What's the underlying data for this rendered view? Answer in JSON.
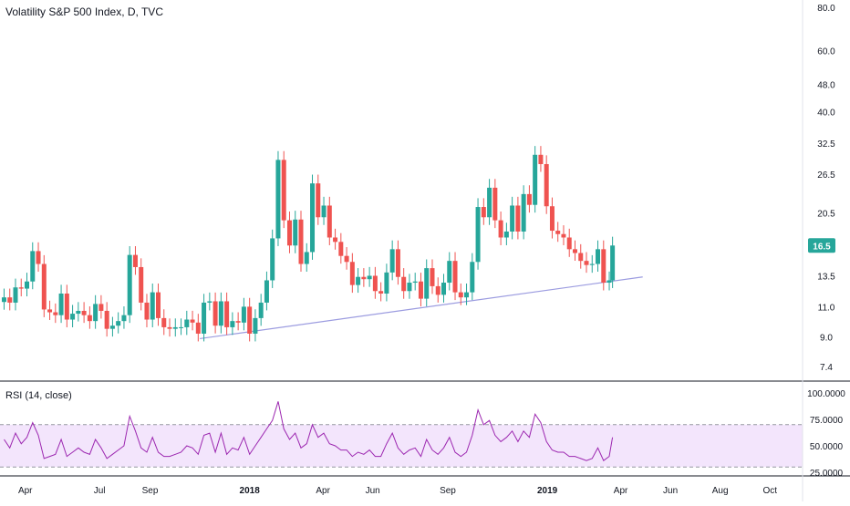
{
  "chart_data": [
    {
      "type": "candlestick",
      "title": "Volatility S&P 500 Index, D, TVC",
      "y_scale": "log",
      "y_ticks": [
        "80.0",
        "60.0",
        "48.0",
        "40.0",
        "32.5",
        "26.5",
        "20.5",
        "16.5",
        "13.5",
        "11.0",
        "9.0",
        "7.4"
      ],
      "y_tick_values": [
        80.0,
        60.0,
        48.0,
        40.0,
        32.5,
        26.5,
        20.5,
        16.5,
        13.5,
        11.0,
        9.0,
        7.4
      ],
      "last_price": "16.5",
      "x_ticks": [
        "Apr",
        "Jul",
        "Sep",
        "2018",
        "Apr",
        "Jun",
        "Sep",
        "2019",
        "Apr",
        "Jun",
        "Aug",
        "Oct"
      ],
      "x_tick_dates": [
        "2017-04-01",
        "2017-07-01",
        "2017-09-01",
        "2018-01-01",
        "2018-04-01",
        "2018-06-01",
        "2018-09-01",
        "2019-01-01",
        "2019-04-01",
        "2019-06-01",
        "2019-08-01",
        "2019-10-01"
      ],
      "closes": [
        {
          "date": "2017-03-06",
          "value": 11.7
        },
        {
          "date": "2017-03-13",
          "value": 11.3
        },
        {
          "date": "2017-03-20",
          "value": 12.5
        },
        {
          "date": "2017-03-27",
          "value": 12.4
        },
        {
          "date": "2017-04-03",
          "value": 13.0
        },
        {
          "date": "2017-04-10",
          "value": 15.9
        },
        {
          "date": "2017-04-17",
          "value": 14.6
        },
        {
          "date": "2017-04-24",
          "value": 10.8
        },
        {
          "date": "2017-05-01",
          "value": 10.6
        },
        {
          "date": "2017-05-08",
          "value": 10.4
        },
        {
          "date": "2017-05-15",
          "value": 12.0
        },
        {
          "date": "2017-05-22",
          "value": 10.1
        },
        {
          "date": "2017-05-29",
          "value": 10.5
        },
        {
          "date": "2017-06-05",
          "value": 10.7
        },
        {
          "date": "2017-06-12",
          "value": 10.4
        },
        {
          "date": "2017-06-19",
          "value": 10.0
        },
        {
          "date": "2017-06-26",
          "value": 11.2
        },
        {
          "date": "2017-07-03",
          "value": 10.7
        },
        {
          "date": "2017-07-10",
          "value": 9.5
        },
        {
          "date": "2017-07-17",
          "value": 9.7
        },
        {
          "date": "2017-07-24",
          "value": 10.0
        },
        {
          "date": "2017-07-31",
          "value": 10.4
        },
        {
          "date": "2017-08-07",
          "value": 15.5
        },
        {
          "date": "2017-08-14",
          "value": 14.3
        },
        {
          "date": "2017-08-21",
          "value": 11.3
        },
        {
          "date": "2017-08-28",
          "value": 10.1
        },
        {
          "date": "2017-09-04",
          "value": 12.1
        },
        {
          "date": "2017-09-11",
          "value": 10.2
        },
        {
          "date": "2017-09-18",
          "value": 9.6
        },
        {
          "date": "2017-09-25",
          "value": 9.5
        },
        {
          "date": "2017-10-02",
          "value": 9.6
        },
        {
          "date": "2017-10-09",
          "value": 9.6
        },
        {
          "date": "2017-10-16",
          "value": 10.1
        },
        {
          "date": "2017-10-23",
          "value": 9.9
        },
        {
          "date": "2017-10-30",
          "value": 9.2
        },
        {
          "date": "2017-11-06",
          "value": 11.3
        },
        {
          "date": "2017-11-13",
          "value": 11.4
        },
        {
          "date": "2017-11-20",
          "value": 9.7
        },
        {
          "date": "2017-11-27",
          "value": 11.4
        },
        {
          "date": "2017-12-04",
          "value": 9.6
        },
        {
          "date": "2017-12-11",
          "value": 10.0
        },
        {
          "date": "2017-12-18",
          "value": 9.9
        },
        {
          "date": "2017-12-25",
          "value": 11.0
        },
        {
          "date": "2018-01-01",
          "value": 9.2
        },
        {
          "date": "2018-01-08",
          "value": 10.2
        },
        {
          "date": "2018-01-15",
          "value": 11.3
        },
        {
          "date": "2018-01-22",
          "value": 13.1
        },
        {
          "date": "2018-01-29",
          "value": 17.3
        },
        {
          "date": "2018-02-05",
          "value": 29.1
        },
        {
          "date": "2018-02-12",
          "value": 19.5
        },
        {
          "date": "2018-02-19",
          "value": 16.5
        },
        {
          "date": "2018-02-26",
          "value": 19.6
        },
        {
          "date": "2018-03-05",
          "value": 14.6
        },
        {
          "date": "2018-03-12",
          "value": 15.8
        },
        {
          "date": "2018-03-19",
          "value": 24.9
        },
        {
          "date": "2018-03-26",
          "value": 19.9
        },
        {
          "date": "2018-04-02",
          "value": 21.5
        },
        {
          "date": "2018-04-09",
          "value": 17.4
        },
        {
          "date": "2018-04-16",
          "value": 16.9
        },
        {
          "date": "2018-04-23",
          "value": 15.4
        },
        {
          "date": "2018-04-30",
          "value": 14.8
        },
        {
          "date": "2018-05-07",
          "value": 12.7
        },
        {
          "date": "2018-05-14",
          "value": 13.4
        },
        {
          "date": "2018-05-21",
          "value": 13.2
        },
        {
          "date": "2018-05-28",
          "value": 13.5
        },
        {
          "date": "2018-06-04",
          "value": 12.2
        },
        {
          "date": "2018-06-11",
          "value": 12.0
        },
        {
          "date": "2018-06-18",
          "value": 13.8
        },
        {
          "date": "2018-06-25",
          "value": 16.1
        },
        {
          "date": "2018-07-02",
          "value": 13.4
        },
        {
          "date": "2018-07-09",
          "value": 12.2
        },
        {
          "date": "2018-07-16",
          "value": 12.9
        },
        {
          "date": "2018-07-23",
          "value": 13.0
        },
        {
          "date": "2018-07-30",
          "value": 11.6
        },
        {
          "date": "2018-08-06",
          "value": 14.2
        },
        {
          "date": "2018-08-13",
          "value": 12.6
        },
        {
          "date": "2018-08-20",
          "value": 11.9
        },
        {
          "date": "2018-08-27",
          "value": 12.9
        },
        {
          "date": "2018-09-03",
          "value": 14.9
        },
        {
          "date": "2018-09-10",
          "value": 12.1
        },
        {
          "date": "2018-09-17",
          "value": 11.7
        },
        {
          "date": "2018-09-24",
          "value": 12.1
        },
        {
          "date": "2018-10-01",
          "value": 14.8
        },
        {
          "date": "2018-10-08",
          "value": 21.3
        },
        {
          "date": "2018-10-15",
          "value": 19.9
        },
        {
          "date": "2018-10-22",
          "value": 24.2
        },
        {
          "date": "2018-10-29",
          "value": 19.5
        },
        {
          "date": "2018-11-05",
          "value": 17.4
        },
        {
          "date": "2018-11-12",
          "value": 18.1
        },
        {
          "date": "2018-11-19",
          "value": 21.5
        },
        {
          "date": "2018-11-26",
          "value": 18.1
        },
        {
          "date": "2018-12-03",
          "value": 23.2
        },
        {
          "date": "2018-12-10",
          "value": 21.6
        },
        {
          "date": "2018-12-17",
          "value": 30.1
        },
        {
          "date": "2018-12-24",
          "value": 28.3
        },
        {
          "date": "2018-12-31",
          "value": 21.4
        },
        {
          "date": "2019-01-07",
          "value": 18.2
        },
        {
          "date": "2019-01-14",
          "value": 17.8
        },
        {
          "date": "2019-01-21",
          "value": 17.4
        },
        {
          "date": "2019-01-28",
          "value": 16.1
        },
        {
          "date": "2019-02-04",
          "value": 15.7
        },
        {
          "date": "2019-02-11",
          "value": 14.9
        },
        {
          "date": "2019-02-18",
          "value": 14.5
        },
        {
          "date": "2019-02-25",
          "value": 14.6
        },
        {
          "date": "2019-03-04",
          "value": 16.1
        },
        {
          "date": "2019-03-11",
          "value": 12.9
        },
        {
          "date": "2019-03-18",
          "value": 13.1
        },
        {
          "date": "2019-03-22",
          "value": 16.5
        }
      ],
      "annotations": {
        "trendline": {
          "from": {
            "date": "2017-11-01",
            "value": 8.9
          },
          "to": {
            "date": "2019-04-28",
            "value": 13.4
          },
          "color": "#9c9ce0"
        }
      },
      "colors": {
        "up": "#26a69a",
        "down": "#ef5350",
        "grid": "#e0e3eb",
        "text": "#131722",
        "price_label": "#26a69a"
      }
    },
    {
      "type": "line",
      "title": "RSI (14, close)",
      "y_ticks": [
        "100.0000",
        "75.0000",
        "50.0000",
        "25.0000"
      ],
      "y_tick_values": [
        100,
        75,
        50,
        25
      ],
      "ylim": [
        20,
        105
      ],
      "band": [
        30,
        70
      ],
      "line_color": "#9c27b0",
      "band_color": "#f3e5fc",
      "values": [
        {
          "date": "2017-03-06",
          "value": 56
        },
        {
          "date": "2017-03-13",
          "value": 48
        },
        {
          "date": "2017-03-20",
          "value": 62
        },
        {
          "date": "2017-03-27",
          "value": 52
        },
        {
          "date": "2017-04-03",
          "value": 58
        },
        {
          "date": "2017-04-10",
          "value": 72
        },
        {
          "date": "2017-04-17",
          "value": 60
        },
        {
          "date": "2017-04-24",
          "value": 38
        },
        {
          "date": "2017-05-01",
          "value": 40
        },
        {
          "date": "2017-05-08",
          "value": 42
        },
        {
          "date": "2017-05-15",
          "value": 56
        },
        {
          "date": "2017-05-22",
          "value": 40
        },
        {
          "date": "2017-05-29",
          "value": 44
        },
        {
          "date": "2017-06-05",
          "value": 48
        },
        {
          "date": "2017-06-12",
          "value": 44
        },
        {
          "date": "2017-06-19",
          "value": 42
        },
        {
          "date": "2017-06-26",
          "value": 56
        },
        {
          "date": "2017-07-03",
          "value": 48
        },
        {
          "date": "2017-07-10",
          "value": 38
        },
        {
          "date": "2017-07-17",
          "value": 42
        },
        {
          "date": "2017-07-24",
          "value": 46
        },
        {
          "date": "2017-07-31",
          "value": 50
        },
        {
          "date": "2017-08-07",
          "value": 78
        },
        {
          "date": "2017-08-14",
          "value": 64
        },
        {
          "date": "2017-08-21",
          "value": 48
        },
        {
          "date": "2017-08-28",
          "value": 44
        },
        {
          "date": "2017-09-04",
          "value": 58
        },
        {
          "date": "2017-09-11",
          "value": 44
        },
        {
          "date": "2017-09-18",
          "value": 40
        },
        {
          "date": "2017-09-25",
          "value": 40
        },
        {
          "date": "2017-10-02",
          "value": 42
        },
        {
          "date": "2017-10-09",
          "value": 44
        },
        {
          "date": "2017-10-16",
          "value": 50
        },
        {
          "date": "2017-10-23",
          "value": 48
        },
        {
          "date": "2017-10-30",
          "value": 42
        },
        {
          "date": "2017-11-06",
          "value": 60
        },
        {
          "date": "2017-11-13",
          "value": 62
        },
        {
          "date": "2017-11-20",
          "value": 44
        },
        {
          "date": "2017-11-27",
          "value": 62
        },
        {
          "date": "2017-12-04",
          "value": 42
        },
        {
          "date": "2017-12-11",
          "value": 48
        },
        {
          "date": "2017-12-18",
          "value": 46
        },
        {
          "date": "2017-12-25",
          "value": 58
        },
        {
          "date": "2018-01-01",
          "value": 42
        },
        {
          "date": "2018-01-08",
          "value": 50
        },
        {
          "date": "2018-01-15",
          "value": 58
        },
        {
          "date": "2018-01-22",
          "value": 66
        },
        {
          "date": "2018-01-29",
          "value": 74
        },
        {
          "date": "2018-02-05",
          "value": 92
        },
        {
          "date": "2018-02-12",
          "value": 66
        },
        {
          "date": "2018-02-19",
          "value": 56
        },
        {
          "date": "2018-02-26",
          "value": 62
        },
        {
          "date": "2018-03-05",
          "value": 48
        },
        {
          "date": "2018-03-12",
          "value": 52
        },
        {
          "date": "2018-03-19",
          "value": 70
        },
        {
          "date": "2018-03-26",
          "value": 58
        },
        {
          "date": "2018-04-02",
          "value": 62
        },
        {
          "date": "2018-04-09",
          "value": 52
        },
        {
          "date": "2018-04-16",
          "value": 50
        },
        {
          "date": "2018-04-23",
          "value": 46
        },
        {
          "date": "2018-04-30",
          "value": 46
        },
        {
          "date": "2018-05-07",
          "value": 40
        },
        {
          "date": "2018-05-14",
          "value": 44
        },
        {
          "date": "2018-05-21",
          "value": 42
        },
        {
          "date": "2018-05-28",
          "value": 46
        },
        {
          "date": "2018-06-04",
          "value": 40
        },
        {
          "date": "2018-06-11",
          "value": 40
        },
        {
          "date": "2018-06-18",
          "value": 52
        },
        {
          "date": "2018-06-25",
          "value": 62
        },
        {
          "date": "2018-07-02",
          "value": 48
        },
        {
          "date": "2018-07-09",
          "value": 42
        },
        {
          "date": "2018-07-16",
          "value": 46
        },
        {
          "date": "2018-07-23",
          "value": 48
        },
        {
          "date": "2018-07-30",
          "value": 40
        },
        {
          "date": "2018-08-06",
          "value": 56
        },
        {
          "date": "2018-08-13",
          "value": 46
        },
        {
          "date": "2018-08-20",
          "value": 42
        },
        {
          "date": "2018-08-27",
          "value": 48
        },
        {
          "date": "2018-09-03",
          "value": 58
        },
        {
          "date": "2018-09-10",
          "value": 44
        },
        {
          "date": "2018-09-17",
          "value": 40
        },
        {
          "date": "2018-09-24",
          "value": 44
        },
        {
          "date": "2018-10-01",
          "value": 60
        },
        {
          "date": "2018-10-08",
          "value": 84
        },
        {
          "date": "2018-10-15",
          "value": 70
        },
        {
          "date": "2018-10-22",
          "value": 74
        },
        {
          "date": "2018-10-29",
          "value": 60
        },
        {
          "date": "2018-11-05",
          "value": 54
        },
        {
          "date": "2018-11-12",
          "value": 58
        },
        {
          "date": "2018-11-19",
          "value": 64
        },
        {
          "date": "2018-11-26",
          "value": 54
        },
        {
          "date": "2018-12-03",
          "value": 64
        },
        {
          "date": "2018-12-10",
          "value": 58
        },
        {
          "date": "2018-12-17",
          "value": 80
        },
        {
          "date": "2018-12-24",
          "value": 72
        },
        {
          "date": "2018-12-31",
          "value": 54
        },
        {
          "date": "2019-01-07",
          "value": 46
        },
        {
          "date": "2019-01-14",
          "value": 44
        },
        {
          "date": "2019-01-21",
          "value": 44
        },
        {
          "date": "2019-01-28",
          "value": 40
        },
        {
          "date": "2019-02-04",
          "value": 40
        },
        {
          "date": "2019-02-11",
          "value": 38
        },
        {
          "date": "2019-02-18",
          "value": 36
        },
        {
          "date": "2019-02-25",
          "value": 38
        },
        {
          "date": "2019-03-04",
          "value": 48
        },
        {
          "date": "2019-03-11",
          "value": 36
        },
        {
          "date": "2019-03-18",
          "value": 40
        },
        {
          "date": "2019-03-22",
          "value": 58
        }
      ]
    }
  ]
}
